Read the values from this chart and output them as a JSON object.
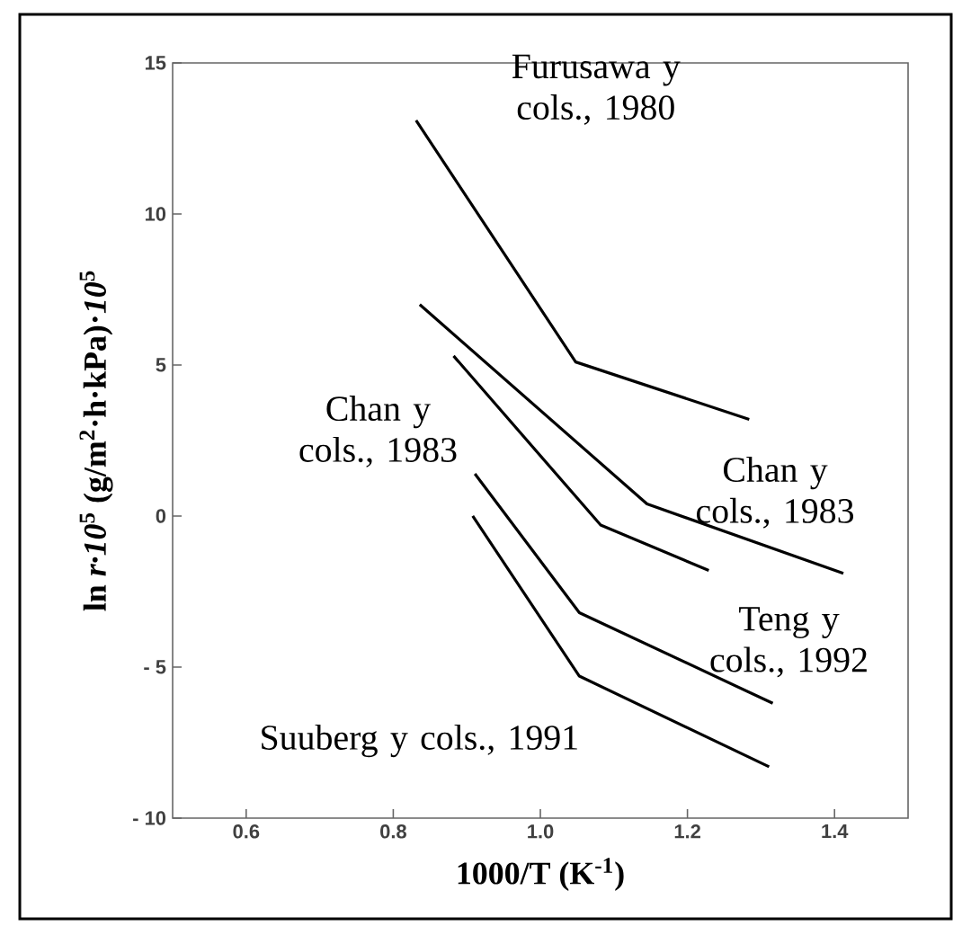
{
  "chart_data": {
    "type": "line",
    "xlabel": "1000/T (K$^{-1}$)",
    "ylabel": "ln *r·10*$^{5}$  (g/m$^{2}$·h·kPa)·*10*$^{5}$",
    "xlim": [
      0.5,
      1.5
    ],
    "ylim": [
      -10,
      15
    ],
    "xticks": [
      0.6,
      0.8,
      {
        "value": 1.0,
        "label": "1.0"
      },
      1.2,
      1.4
    ],
    "yticks": [
      {
        "value": -10,
        "label": "- 10"
      },
      {
        "value": -5,
        "label": "- 5"
      },
      0,
      5,
      10,
      15
    ],
    "series": [
      {
        "name": "Furusawa y cols., 1980",
        "color": "#000000",
        "x": [
          0.831,
          1.048,
          1.284
        ],
        "values": [
          13.1,
          5.1,
          3.2
        ]
      },
      {
        "name": "Chan y cols., 1983",
        "color": "#000000",
        "x": [
          0.836,
          1.145,
          1.412
        ],
        "values": [
          7.0,
          0.4,
          -1.9
        ]
      },
      {
        "name": "Chan y cols., 1983",
        "color": "#000000",
        "x": [
          0.882,
          1.082,
          1.229
        ],
        "values": [
          5.3,
          -0.3,
          -1.8
        ]
      },
      {
        "name": "Teng y cols., 1992",
        "color": "#000000",
        "x": [
          0.911,
          1.053,
          1.316
        ],
        "values": [
          1.4,
          -3.2,
          -6.2
        ]
      },
      {
        "name": "Suuberg y cols., 1991",
        "color": "#000000",
        "x": [
          0.908,
          1.053,
          1.311
        ],
        "values": [
          0.0,
          -5.3,
          -8.3
        ]
      }
    ]
  }
}
